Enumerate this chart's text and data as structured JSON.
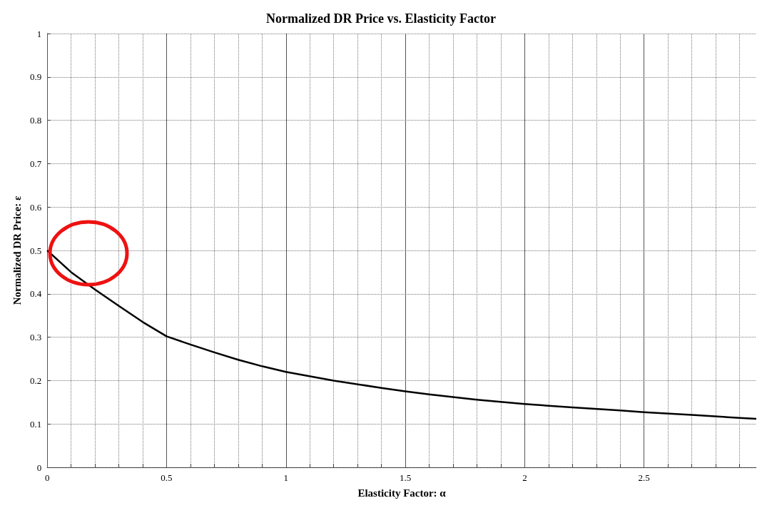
{
  "chart_data": {
    "type": "line",
    "title": "Normalized DR Price vs. Elasticity Factor",
    "xlabel": "Elasticity Factor: α",
    "ylabel": "Normalized DR Price: ε",
    "x": [
      0,
      0.1,
      0.2,
      0.3,
      0.4,
      0.5,
      0.6,
      0.7,
      0.8,
      0.9,
      1.0,
      1.2,
      1.4,
      1.5,
      1.6,
      1.8,
      2.0,
      2.2,
      2.4,
      2.5,
      2.7,
      2.9,
      2.97
    ],
    "series": [
      {
        "color": "#000000",
        "values": [
          0.5,
          0.45,
          0.41,
          0.372,
          0.335,
          0.302,
          0.283,
          0.265,
          0.248,
          0.233,
          0.22,
          0.2,
          0.183,
          0.175,
          0.168,
          0.156,
          0.146,
          0.138,
          0.131,
          0.127,
          0.121,
          0.114,
          0.112
        ]
      }
    ],
    "xlim": [
      0,
      2.97
    ],
    "xticks": [
      0,
      {
        "value": 0.1,
        "label": null
      },
      {
        "value": 0.2,
        "label": null
      },
      {
        "value": 0.3,
        "label": null
      },
      {
        "value": 0.4,
        "label": null
      },
      0.5,
      {
        "value": 0.6,
        "label": null
      },
      {
        "value": 0.7,
        "label": null
      },
      {
        "value": 0.8,
        "label": null
      },
      {
        "value": 0.9,
        "label": null
      },
      1,
      {
        "value": 1.1,
        "label": null
      },
      {
        "value": 1.2,
        "label": null
      },
      {
        "value": 1.3,
        "label": null
      },
      {
        "value": 1.4,
        "label": null
      },
      1.5,
      {
        "value": 1.6,
        "label": null
      },
      {
        "value": 1.7,
        "label": null
      },
      {
        "value": 1.8,
        "label": null
      },
      {
        "value": 1.9,
        "label": null
      },
      2,
      {
        "value": 2.1,
        "label": null
      },
      {
        "value": 2.2,
        "label": null
      },
      {
        "value": 2.3,
        "label": null
      },
      {
        "value": 2.4,
        "label": null
      },
      2.5,
      {
        "value": 2.6,
        "label": null
      },
      {
        "value": 2.7,
        "label": null
      },
      {
        "value": 2.8,
        "label": null
      },
      {
        "value": 2.9,
        "label": null
      }
    ],
    "ylim": [
      0,
      1
    ],
    "yticks": [
      0,
      0.1,
      0.2,
      0.3,
      0.4,
      0.5,
      0.6,
      0.7,
      0.8,
      0.9,
      1
    ],
    "grid": true,
    "marker": "none",
    "line_style": "solid"
  }
}
